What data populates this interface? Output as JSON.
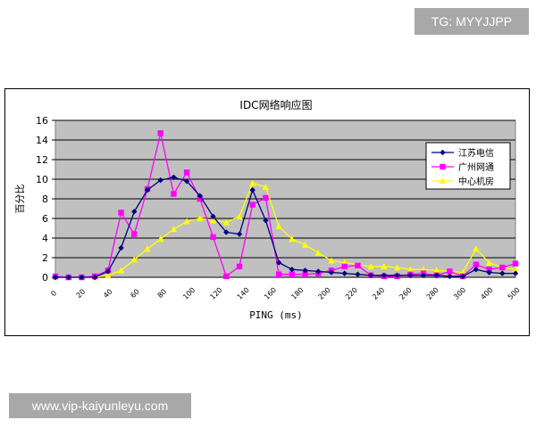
{
  "watermarks": {
    "tg_label": "TG: MYYJJPP",
    "url_label": "www.vip-kaiyunleyu.com"
  },
  "colors": {
    "plot_bg": "#c0c0c0",
    "series_jiangsu": "#000080",
    "series_guangzhou": "#ff00ff",
    "series_center": "#ffff00"
  },
  "chart_data": {
    "type": "line",
    "title": "IDC网络响应图",
    "xlabel": "PING (ms)",
    "ylabel": "百分比",
    "ylim": [
      0,
      16
    ],
    "yticks": [
      0,
      2,
      4,
      6,
      8,
      10,
      12,
      14,
      16
    ],
    "grid": true,
    "legend_position": "right",
    "x_tick_labels": [
      "0",
      "20",
      "40",
      "60",
      "80",
      "100",
      "120",
      "140",
      "160",
      "180",
      "200",
      "220",
      "240",
      "260",
      "280",
      "300",
      "400",
      "500"
    ],
    "series": [
      {
        "name": "江苏电信",
        "marker": "diamond",
        "color": "#000080",
        "values": [
          0,
          0,
          0,
          0,
          0.6,
          3.0,
          6.7,
          8.9,
          9.9,
          10.2,
          9.8,
          8.3,
          6.2,
          4.6,
          4.4,
          8.9,
          5.8,
          1.5,
          0.8,
          0.7,
          0.6,
          0.5,
          0.4,
          0.3,
          0.2,
          0.2,
          0.2,
          0.2,
          0.2,
          0.2,
          0.1,
          0.1,
          0.8,
          0.5,
          0.4,
          0.4
        ]
      },
      {
        "name": "广州网通",
        "marker": "square",
        "color": "#ff00ff",
        "values": [
          0.1,
          0,
          0,
          0.1,
          0.7,
          6.6,
          4.4,
          9.0,
          14.7,
          8.5,
          10.7,
          8.0,
          4.1,
          0.1,
          1.1,
          7.4,
          8.1,
          0.3,
          0.3,
          0.3,
          0.4,
          0.7,
          1.1,
          1.2,
          0.2,
          0.1,
          0.1,
          0.3,
          0.4,
          0.2,
          0.6,
          0.1,
          1.3,
          0.8,
          1.0,
          1.4
        ]
      },
      {
        "name": "中心机房",
        "marker": "triangle",
        "color": "#ffff00",
        "values": [
          0,
          0,
          0,
          0,
          0.2,
          0.7,
          1.8,
          2.9,
          3.9,
          4.9,
          5.7,
          6.0,
          5.8,
          5.6,
          6.2,
          9.6,
          9.2,
          5.2,
          3.9,
          3.3,
          2.5,
          1.7,
          1.5,
          1.3,
          1.1,
          1.1,
          1.0,
          0.8,
          0.8,
          0.7,
          0.6,
          0.5,
          2.9,
          1.5,
          1.0,
          0.8
        ]
      }
    ]
  }
}
